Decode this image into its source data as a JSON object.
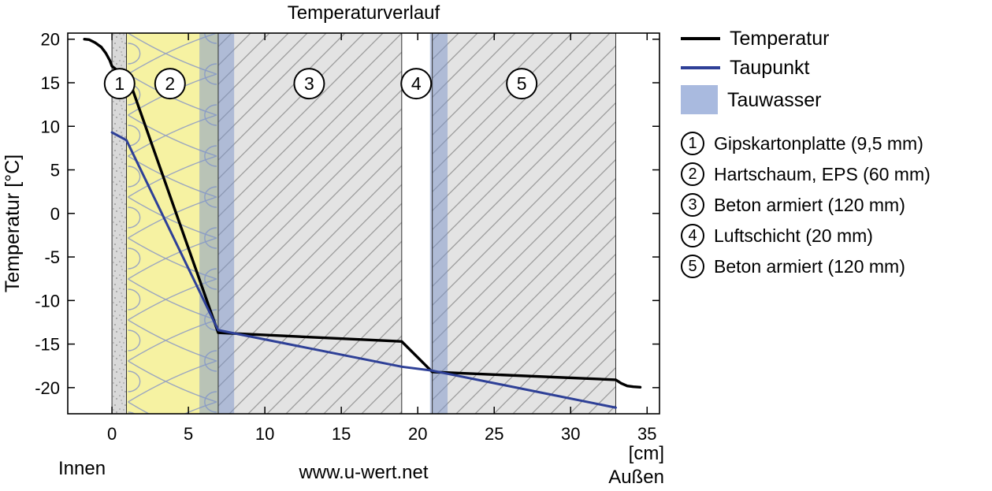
{
  "title": "Temperaturverlauf",
  "colors": {
    "temperature": "#000000",
    "dewpoint": "#2e4097",
    "condensate": "#a9badf",
    "condensate_zone": "#7b93c9",
    "gypsum_fill": "#d9d9d9",
    "eps_fill": "#f6f2a2",
    "eps_stroke": "#9ba6c0",
    "concrete_fill": "#e3e3e3",
    "hatch_stroke": "#9b9b9b",
    "speckle_dot": "#8a8a8a"
  },
  "legend": {
    "items": [
      {
        "label": "Temperatur",
        "swatch": "line-black"
      },
      {
        "label": "Taupunkt",
        "swatch": "line-blue"
      },
      {
        "label": "Tauwasser",
        "swatch": "rect-lightblue"
      }
    ]
  },
  "footer": {
    "left": "Innen",
    "center": "www.u-wert.net",
    "unit": "[cm]",
    "right": "Außen"
  },
  "chart_data": {
    "type": "line",
    "title": "Temperaturverlauf",
    "ylabel": "Temperatur [°C]",
    "xlabel": "[cm]",
    "xlim": [
      -2.89,
      35.81
    ],
    "ylim": [
      -23.0,
      20.7
    ],
    "x_ticks": [
      0,
      5,
      10,
      15,
      20,
      25,
      30,
      35
    ],
    "y_ticks": [
      20,
      15,
      10,
      5,
      0,
      -5,
      -10,
      -15,
      -20
    ],
    "grid": false,
    "legend_position": "outside-right",
    "annotation_circle_temp_y": 14.9,
    "layers": [
      {
        "num": "1",
        "label": "Gipskartonplatte (9,5 mm)",
        "from_cm": 0,
        "to_cm": 0.95,
        "pattern": "speckle",
        "circle_x": 0.5
      },
      {
        "num": "2",
        "label": "Hartschaum, EPS (60 mm)",
        "from_cm": 0.95,
        "to_cm": 6.95,
        "pattern": "insulation",
        "circle_x": 3.8
      },
      {
        "num": "3",
        "label": "Beton armiert (120 mm)",
        "from_cm": 6.95,
        "to_cm": 18.95,
        "pattern": "hatch",
        "circle_x": 12.9
      },
      {
        "num": "4",
        "label": "Luftschicht (20 mm)",
        "from_cm": 18.95,
        "to_cm": 20.95,
        "pattern": "none",
        "circle_x": 19.9
      },
      {
        "num": "5",
        "label": "Beton armiert (120 mm)",
        "from_cm": 20.95,
        "to_cm": 32.95,
        "pattern": "hatch",
        "circle_x": 26.8
      }
    ],
    "condensation_zones": [
      {
        "from_cm": 5.72,
        "to_cm": 7.99
      },
      {
        "from_cm": 20.8,
        "to_cm": 21.95
      }
    ],
    "series": [
      {
        "name": "Temperatur",
        "color": "#000000",
        "points": [
          [
            -1.8,
            20.0
          ],
          [
            -1.5,
            19.95
          ],
          [
            -1.1,
            19.6
          ],
          [
            -0.7,
            19.1
          ],
          [
            -0.4,
            18.4
          ],
          [
            -0.15,
            17.6
          ],
          [
            0,
            16.9
          ],
          [
            0.3,
            16.5
          ],
          [
            0.95,
            16.2
          ],
          [
            6.95,
            -13.7
          ],
          [
            18.95,
            -14.7
          ],
          [
            20.95,
            -18.2
          ],
          [
            32.95,
            -19.1
          ],
          [
            33.3,
            -19.5
          ],
          [
            33.7,
            -19.8
          ],
          [
            34.1,
            -19.9
          ],
          [
            34.55,
            -19.95
          ]
        ]
      },
      {
        "name": "Taupunkt",
        "color": "#2e4097",
        "points": [
          [
            0,
            9.3
          ],
          [
            0.95,
            8.4
          ],
          [
            6.95,
            -13.4
          ],
          [
            18.95,
            -17.6
          ],
          [
            20.95,
            -18.05
          ],
          [
            32.95,
            -22.3
          ]
        ]
      }
    ],
    "condensate_label": "Tauwasser"
  }
}
